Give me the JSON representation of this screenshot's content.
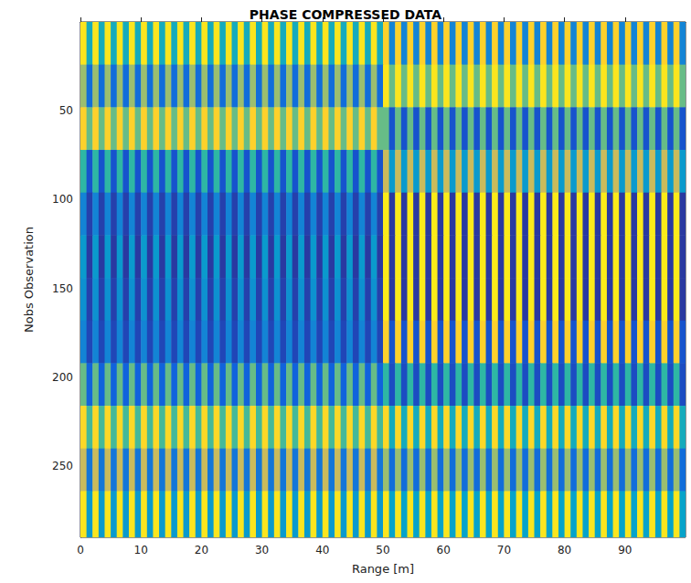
{
  "chart_data": {
    "type": "heatmap",
    "title": "PHASE COMPRESSED DATA",
    "xlabel": "Range [m]",
    "ylabel": "Nobs Observation",
    "xlim": [
      0,
      100
    ],
    "ylim": [
      0,
      290
    ],
    "xticks": [
      0,
      10,
      20,
      30,
      40,
      50,
      60,
      70,
      80,
      90
    ],
    "yticks": [
      50,
      100,
      150,
      200,
      250
    ],
    "grid": false,
    "zlim": [
      -3.14,
      3.14
    ],
    "x_bins": [
      0,
      1,
      2,
      3,
      4,
      5,
      6,
      7,
      8,
      9,
      10,
      11,
      12,
      13,
      14,
      15,
      16,
      17,
      18,
      19,
      20,
      21,
      22,
      23,
      24,
      25,
      26,
      27,
      28,
      29,
      30,
      31,
      32,
      33,
      34,
      35,
      36,
      37,
      38,
      39,
      40,
      41,
      42,
      43,
      44,
      45,
      46,
      47,
      48,
      49,
      50,
      51,
      52,
      53,
      54,
      55,
      56,
      57,
      58,
      59,
      60,
      61,
      62,
      63,
      64,
      65,
      66,
      67,
      68,
      69,
      70,
      71,
      72,
      73,
      74,
      75,
      76,
      77,
      78,
      79,
      80,
      81,
      82,
      83,
      84,
      85,
      86,
      87,
      88,
      89,
      90,
      91,
      92,
      93,
      94,
      95,
      96,
      97,
      98,
      99,
      100
    ],
    "y_bins": [
      0,
      24,
      48,
      72,
      96,
      120,
      144,
      168,
      192,
      216,
      240,
      264,
      290
    ],
    "cells": [
      [
        2.8,
        -0.5,
        2.8,
        -0.5,
        2.8,
        -0.5,
        2.8,
        -0.5,
        2.8,
        -0.5,
        2.8,
        -0.5,
        2.8,
        -0.5,
        2.8,
        -0.5,
        2.8,
        -0.5,
        2.8,
        -0.5,
        2.8,
        -0.5,
        2.8,
        -0.5,
        2.8,
        -0.5,
        2.8,
        -0.5,
        2.8,
        -0.5,
        2.8,
        -0.5,
        2.8,
        -0.5,
        2.8,
        -0.5,
        2.8,
        -0.5,
        2.8,
        -0.5,
        2.8,
        -0.5,
        2.8,
        -0.5,
        2.8,
        -0.5,
        2.8,
        -0.5,
        2.8,
        -0.5,
        2.5,
        -1.5,
        2.5,
        -1.5,
        2.5,
        -1.5,
        2.5,
        -1.5,
        2.5,
        -1.5,
        2.5,
        -1.5,
        2.5,
        -1.5,
        2.5,
        -1.5,
        2.5,
        -1.5,
        2.5,
        -1.5,
        2.5,
        -1.5,
        2.5,
        -1.5,
        2.5,
        -1.5,
        2.5,
        -1.5,
        2.5,
        -1.5,
        2.5,
        -1.5,
        2.5,
        -1.5,
        2.5,
        -1.5,
        2.5,
        -1.5,
        2.5,
        -1.5,
        2.5,
        -1.5,
        2.5,
        -1.5,
        2.5,
        -1.5,
        2.5,
        -1.5,
        2.5,
        -1.5
      ],
      [
        1.0,
        -2.0,
        1.0,
        -2.0,
        1.0,
        -2.0,
        1.0,
        -2.0,
        1.0,
        -2.0,
        1.0,
        -2.0,
        1.0,
        -2.0,
        1.0,
        -2.0,
        1.0,
        -2.0,
        1.0,
        -2.0,
        1.0,
        -2.0,
        1.0,
        -2.0,
        1.0,
        -2.0,
        1.0,
        -2.0,
        1.0,
        -2.0,
        1.0,
        -2.0,
        1.0,
        -2.0,
        1.0,
        -2.0,
        1.0,
        -2.0,
        1.0,
        -2.0,
        1.0,
        -2.0,
        1.0,
        -2.0,
        1.0,
        -2.0,
        1.0,
        -2.0,
        1.0,
        -2.0,
        2.8,
        0.5,
        2.8,
        0.5,
        2.8,
        0.5,
        2.8,
        0.5,
        2.8,
        0.5,
        2.8,
        0.5,
        2.8,
        0.5,
        2.8,
        0.5,
        2.8,
        0.5,
        2.8,
        0.5,
        2.8,
        0.5,
        2.8,
        0.5,
        2.8,
        0.5,
        2.8,
        0.5,
        2.8,
        0.5,
        2.8,
        0.5,
        2.8,
        0.5,
        2.8,
        0.5,
        2.8,
        0.5,
        2.8,
        0.5,
        2.8,
        0.5,
        2.8,
        0.5,
        2.8,
        0.5,
        2.8,
        0.5,
        2.8,
        0.5
      ],
      [
        2.5,
        0.5,
        2.5,
        0.5,
        2.5,
        0.5,
        2.5,
        0.5,
        2.5,
        0.5,
        2.5,
        0.5,
        2.5,
        0.5,
        2.5,
        0.5,
        2.5,
        0.5,
        2.5,
        0.5,
        2.5,
        0.5,
        2.5,
        0.5,
        2.5,
        0.5,
        2.5,
        0.5,
        2.5,
        0.5,
        2.5,
        0.5,
        2.5,
        0.5,
        2.5,
        0.5,
        2.5,
        0.5,
        2.5,
        0.5,
        2.5,
        0.5,
        2.5,
        0.5,
        2.5,
        0.5,
        2.5,
        0.5,
        2.5,
        0.5,
        0.5,
        -2.5,
        0.5,
        -2.5,
        0.5,
        -2.5,
        0.5,
        -2.5,
        0.5,
        -2.5,
        0.5,
        -2.5,
        0.5,
        -2.5,
        0.5,
        -2.5,
        0.5,
        -2.5,
        0.5,
        -2.5,
        0.5,
        -2.5,
        0.5,
        -2.5,
        0.5,
        -2.5,
        0.5,
        -2.5,
        0.5,
        -2.5,
        0.5,
        -2.5,
        0.5,
        -2.5,
        0.5,
        -2.5,
        0.5,
        -2.5,
        0.5,
        -2.5,
        0.5,
        -2.5,
        0.5,
        -2.5,
        0.5,
        -2.5,
        0.5,
        -2.5,
        0.5,
        -2.5
      ],
      [
        0.0,
        -2.5,
        0.0,
        -2.5,
        0.0,
        -2.5,
        0.0,
        -2.5,
        0.0,
        -2.5,
        0.0,
        -2.5,
        0.0,
        -2.5,
        0.0,
        -2.5,
        0.0,
        -2.5,
        0.0,
        -2.5,
        0.0,
        -2.5,
        0.0,
        -2.5,
        0.0,
        -2.5,
        0.0,
        -2.5,
        0.0,
        -2.5,
        0.0,
        -2.5,
        0.0,
        -2.5,
        0.0,
        -2.5,
        0.0,
        -2.5,
        0.0,
        -2.5,
        0.0,
        -2.5,
        0.0,
        -2.5,
        0.0,
        -2.5,
        0.0,
        -2.5,
        0.0,
        -2.5,
        1.5,
        -1.0,
        1.5,
        -1.0,
        1.5,
        -1.0,
        1.5,
        -1.0,
        1.5,
        -1.0,
        1.5,
        -1.0,
        1.5,
        -1.0,
        1.5,
        -1.0,
        1.5,
        -1.0,
        1.5,
        -1.0,
        1.5,
        -1.0,
        1.5,
        -1.0,
        1.5,
        -1.0,
        1.5,
        -1.0,
        1.5,
        -1.0,
        1.5,
        -1.0,
        1.5,
        -1.0,
        1.5,
        -1.0,
        1.5,
        -1.0,
        1.5,
        -1.0,
        1.5,
        -1.0,
        1.5,
        -1.0,
        1.5,
        -1.0,
        1.5,
        -1.0,
        1.5,
        -1.0
      ],
      [
        -1.5,
        -2.8,
        -1.5,
        -2.8,
        -1.5,
        -2.8,
        -1.5,
        -2.8,
        -1.5,
        -2.8,
        -1.5,
        -2.8,
        -1.5,
        -2.8,
        -1.5,
        -2.8,
        -1.5,
        -2.8,
        -1.5,
        -2.8,
        -1.5,
        -2.8,
        -1.5,
        -2.8,
        -1.5,
        -2.8,
        -1.5,
        -2.8,
        -1.5,
        -2.8,
        -1.5,
        -2.8,
        -1.5,
        -2.8,
        -1.5,
        -2.8,
        -1.5,
        -2.8,
        -1.5,
        -2.8,
        -1.5,
        -2.8,
        -1.5,
        -2.8,
        -1.5,
        -2.8,
        -1.5,
        -2.8,
        -1.5,
        -2.8,
        2.9,
        -2.9,
        2.9,
        -2.9,
        2.9,
        -2.9,
        2.9,
        -2.9,
        2.9,
        -2.9,
        2.9,
        -2.9,
        2.9,
        -2.9,
        2.9,
        -2.9,
        2.9,
        -2.9,
        2.9,
        -2.9,
        2.9,
        -2.9,
        2.9,
        -2.9,
        2.9,
        -2.9,
        2.9,
        -2.9,
        2.9,
        -2.9,
        2.9,
        -2.9,
        2.9,
        -2.9,
        2.9,
        -2.9,
        2.9,
        -2.9,
        2.9,
        -2.9,
        2.9,
        -2.9,
        2.9,
        -2.9,
        2.9,
        -2.9,
        2.9,
        -2.9,
        2.9,
        -2.9
      ],
      [
        -1.0,
        -2.9,
        -1.0,
        -2.9,
        -1.0,
        -2.9,
        -1.0,
        -2.9,
        -1.0,
        -2.9,
        -1.0,
        -2.9,
        -1.0,
        -2.9,
        -1.0,
        -2.9,
        -1.0,
        -2.9,
        -1.0,
        -2.9,
        -1.0,
        -2.9,
        -1.0,
        -2.9,
        -1.0,
        -2.9,
        -1.0,
        -2.9,
        -1.0,
        -2.9,
        -1.0,
        -2.9,
        -1.0,
        -2.9,
        -1.0,
        -2.9,
        -1.0,
        -2.9,
        -1.0,
        -2.9,
        -1.0,
        -2.9,
        -1.0,
        -2.9,
        -1.0,
        -2.9,
        -1.0,
        -2.9,
        -1.0,
        -2.9,
        2.9,
        -2.9,
        2.9,
        -2.9,
        2.9,
        -2.9,
        2.9,
        -2.9,
        2.9,
        -2.9,
        2.9,
        -2.9,
        2.9,
        -2.9,
        2.9,
        -2.9,
        2.9,
        -2.9,
        2.9,
        -2.9,
        2.9,
        -2.9,
        2.9,
        -2.9,
        2.9,
        -2.9,
        2.9,
        -2.9,
        2.9,
        -2.9,
        2.9,
        -2.9,
        2.9,
        -2.9,
        2.9,
        -2.9,
        2.9,
        -2.9,
        2.9,
        -2.9,
        2.9,
        -2.9,
        2.9,
        -2.9,
        2.9,
        -2.9,
        2.9,
        -2.9,
        2.9,
        -2.9
      ],
      [
        -1.2,
        -2.8,
        -1.2,
        -2.8,
        -1.2,
        -2.8,
        -1.2,
        -2.8,
        -1.2,
        -2.8,
        -1.2,
        -2.8,
        -1.2,
        -2.8,
        -1.2,
        -2.8,
        -1.2,
        -2.8,
        -1.2,
        -2.8,
        -1.2,
        -2.8,
        -1.2,
        -2.8,
        -1.2,
        -2.8,
        -1.2,
        -2.8,
        -1.2,
        -2.8,
        -1.2,
        -2.8,
        -1.2,
        -2.8,
        -1.2,
        -2.8,
        -1.2,
        -2.8,
        -1.2,
        -2.8,
        -1.2,
        -2.8,
        -1.2,
        -2.8,
        -1.2,
        -2.8,
        -1.2,
        -2.8,
        -1.2,
        -2.8,
        2.9,
        -2.9,
        2.9,
        -2.9,
        2.9,
        -2.9,
        2.9,
        -2.9,
        2.9,
        -2.9,
        2.9,
        -2.9,
        2.9,
        -2.9,
        2.9,
        -2.9,
        2.9,
        -2.9,
        2.9,
        -2.9,
        2.9,
        -2.9,
        2.9,
        -2.9,
        2.9,
        -2.9,
        2.9,
        -2.9,
        2.9,
        -2.9,
        2.9,
        -2.9,
        2.9,
        -2.9,
        2.9,
        -2.9,
        2.9,
        -2.9,
        2.9,
        -2.9,
        2.9,
        -2.9,
        2.9,
        -2.9,
        2.9,
        -2.9,
        2.9,
        -2.9,
        2.9,
        -2.9
      ],
      [
        -1.5,
        -2.7,
        -1.5,
        -2.7,
        -1.5,
        -2.7,
        -1.5,
        -2.7,
        -1.5,
        -2.7,
        -1.5,
        -2.7,
        -1.5,
        -2.7,
        -1.5,
        -2.7,
        -1.5,
        -2.7,
        -1.5,
        -2.7,
        -1.5,
        -2.7,
        -1.5,
        -2.7,
        -1.5,
        -2.7,
        -1.5,
        -2.7,
        -1.5,
        -2.7,
        -1.5,
        -2.7,
        -1.5,
        -2.7,
        -1.5,
        -2.7,
        -1.5,
        -2.7,
        -1.5,
        -2.7,
        -1.5,
        -2.7,
        -1.5,
        -2.7,
        -1.5,
        -2.7,
        -1.5,
        -2.7,
        -1.5,
        -2.7,
        2.5,
        -2.5,
        2.5,
        -2.5,
        2.5,
        -2.5,
        2.5,
        -2.5,
        2.5,
        -2.5,
        2.5,
        -2.5,
        2.5,
        -2.5,
        2.5,
        -2.5,
        2.5,
        -2.5,
        2.5,
        -2.5,
        2.5,
        -2.5,
        2.5,
        -2.5,
        2.5,
        -2.5,
        2.5,
        -2.5,
        2.5,
        -2.5,
        2.5,
        -2.5,
        2.5,
        -2.5,
        2.5,
        -2.5,
        2.5,
        -2.5,
        2.5,
        -2.5,
        2.5,
        -2.5,
        2.5,
        -2.5,
        2.5,
        -2.5,
        2.5,
        -2.5,
        2.5,
        -2.5
      ],
      [
        0.5,
        -2.2,
        0.5,
        -2.2,
        0.5,
        -2.2,
        0.5,
        -2.2,
        0.5,
        -2.2,
        0.5,
        -2.2,
        0.5,
        -2.2,
        0.5,
        -2.2,
        0.5,
        -2.2,
        0.5,
        -2.2,
        0.5,
        -2.2,
        0.5,
        -2.2,
        0.5,
        -2.2,
        0.5,
        -2.2,
        0.5,
        -2.2,
        0.5,
        -2.2,
        0.5,
        -2.2,
        0.5,
        -2.2,
        0.5,
        -2.2,
        0.5,
        -2.2,
        0.5,
        -2.2,
        0.5,
        -2.2,
        0.5,
        -2.2,
        0.5,
        -2.2,
        0.5,
        -2.2,
        0.0,
        -2.6,
        0.0,
        -2.6,
        0.0,
        -2.6,
        0.0,
        -2.6,
        0.0,
        -2.6,
        0.0,
        -2.6,
        0.0,
        -2.6,
        0.0,
        -2.6,
        0.0,
        -2.6,
        0.0,
        -2.6,
        0.0,
        -2.6,
        0.0,
        -2.6,
        0.0,
        -2.6,
        0.0,
        -2.6,
        0.0,
        -2.6,
        0.0,
        -2.6,
        0.0,
        -2.6,
        0.0,
        -2.6,
        0.0,
        -2.6,
        0.0,
        -2.6,
        0.0,
        -2.6,
        0.0,
        -2.6,
        0.0,
        -2.6,
        0.0,
        -2.6,
        0.0,
        -2.6
      ],
      [
        2.6,
        0.2,
        2.6,
        0.2,
        2.6,
        0.2,
        2.6,
        0.2,
        2.6,
        0.2,
        2.6,
        0.2,
        2.6,
        0.2,
        2.6,
        0.2,
        2.6,
        0.2,
        2.6,
        0.2,
        2.6,
        0.2,
        2.6,
        0.2,
        2.6,
        0.2,
        2.6,
        0.2,
        2.6,
        0.2,
        2.6,
        0.2,
        2.6,
        0.2,
        2.6,
        0.2,
        2.6,
        0.2,
        2.6,
        0.2,
        2.6,
        0.2,
        2.6,
        0.2,
        2.6,
        0.2,
        2.6,
        0.2,
        2.6,
        0.2,
        2.6,
        -0.5,
        2.6,
        -0.5,
        2.6,
        -0.5,
        2.6,
        -0.5,
        2.6,
        -0.5,
        2.6,
        -0.5,
        2.6,
        -0.5,
        2.6,
        -0.5,
        2.6,
        -0.5,
        2.6,
        -0.5,
        2.6,
        -0.5,
        2.6,
        -0.5,
        2.6,
        -0.5,
        2.6,
        -0.5,
        2.6,
        -0.5,
        2.6,
        -0.5,
        2.6,
        -0.5,
        2.6,
        -0.5,
        2.6,
        -0.5,
        2.6,
        -0.5,
        2.6,
        -0.5,
        2.6,
        -0.5,
        2.6,
        -0.5,
        2.6,
        -0.5,
        2.6,
        -0.5
      ],
      [
        1.5,
        -1.8,
        1.5,
        -1.8,
        1.5,
        -1.8,
        1.5,
        -1.8,
        1.5,
        -1.8,
        1.5,
        -1.8,
        1.5,
        -1.8,
        1.5,
        -1.8,
        1.5,
        -1.8,
        1.5,
        -1.8,
        1.5,
        -1.8,
        1.5,
        -1.8,
        1.5,
        -1.8,
        1.5,
        -1.8,
        1.5,
        -1.8,
        1.5,
        -1.8,
        1.5,
        -1.8,
        1.5,
        -1.8,
        1.5,
        -1.8,
        1.5,
        -1.8,
        1.5,
        -1.8,
        1.5,
        -1.8,
        1.5,
        -1.8,
        1.5,
        -1.8,
        1.5,
        -1.8,
        1.0,
        -2.0,
        1.0,
        -2.0,
        1.0,
        -2.0,
        1.0,
        -2.0,
        1.0,
        -2.0,
        1.0,
        -2.0,
        1.0,
        -2.0,
        1.0,
        -2.0,
        1.0,
        -2.0,
        1.0,
        -2.0,
        1.0,
        -2.0,
        1.0,
        -2.0,
        1.0,
        -2.0,
        1.0,
        -2.0,
        1.0,
        -2.0,
        1.0,
        -2.0,
        1.0,
        -2.0,
        1.0,
        -2.0,
        1.0,
        -2.0,
        1.0,
        -2.0,
        1.0,
        -2.0,
        1.0,
        -2.0,
        1.0,
        -2.0,
        1.0,
        -2.0,
        1.0,
        -2.0
      ],
      [
        2.8,
        -1.0,
        2.8,
        -1.0,
        2.8,
        -1.0,
        2.8,
        -1.0,
        2.8,
        -1.0,
        2.8,
        -1.0,
        2.8,
        -1.0,
        2.8,
        -1.0,
        2.8,
        -1.0,
        2.8,
        -1.0,
        2.8,
        -1.0,
        2.8,
        -1.0,
        2.8,
        -1.0,
        2.8,
        -1.0,
        2.8,
        -1.0,
        2.8,
        -1.0,
        2.8,
        -1.0,
        2.8,
        -1.0,
        2.8,
        -1.0,
        2.8,
        -1.0,
        2.8,
        -1.0,
        2.8,
        -1.0,
        2.8,
        -1.0,
        2.8,
        -1.0,
        2.8,
        -1.0,
        2.8,
        -0.8,
        2.8,
        -0.8,
        2.8,
        -0.8,
        2.8,
        -0.8,
        2.8,
        -0.8,
        2.8,
        -0.8,
        2.8,
        -0.8,
        2.8,
        -0.8,
        2.8,
        -0.8,
        2.8,
        -0.8,
        2.8,
        -0.8,
        2.8,
        -0.8,
        2.8,
        -0.8,
        2.8,
        -0.8,
        2.8,
        -0.8,
        2.8,
        -0.8,
        2.8,
        -0.8,
        2.8,
        -0.8,
        2.8,
        -0.8,
        2.8,
        -0.8,
        2.8,
        -0.8,
        2.8,
        -0.8,
        2.8,
        -0.8,
        2.8,
        -0.8,
        2.8,
        -0.8
      ]
    ]
  }
}
